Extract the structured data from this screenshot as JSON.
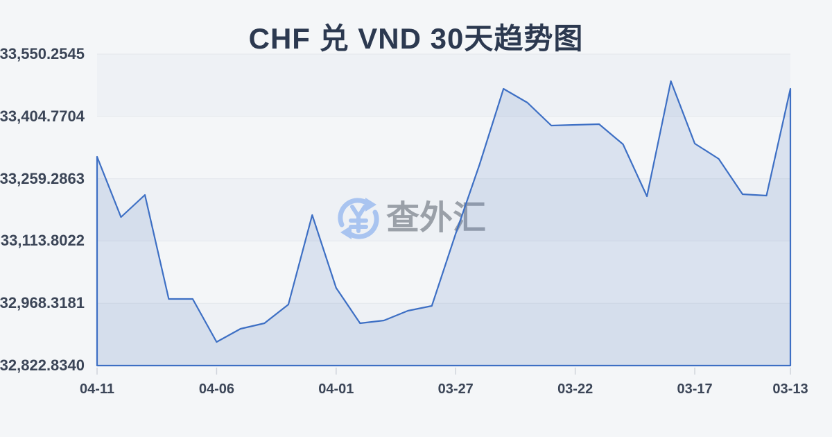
{
  "page": {
    "title": "CHF 兑 VND 30天趋势图"
  },
  "watermark": {
    "text": "查外汇",
    "icon": "yuan-refresh-icon"
  },
  "colors": {
    "background": "#f4f6f8",
    "line": "#3d6fc4",
    "area_fill": "rgba(90,125,195,0.16)",
    "split_area": "rgba(160,173,197,0.06)",
    "gridline": "#e4e7ec",
    "tick": "#cfd4db",
    "title_text": "#2c3950",
    "axis_text": "#3b4557",
    "watermark_text": "#9aa0a8",
    "watermark_icon": "#a9c4f0"
  },
  "chart_data": {
    "type": "area",
    "title": "CHF 兑 VND 30天趋势图",
    "xlabel": "",
    "ylabel": "",
    "legend": "none",
    "grid": "horizontal",
    "ylim": [
      32822.834,
      33550.2545
    ],
    "x": [
      "04-11",
      "04-10",
      "04-09",
      "04-08",
      "04-07",
      "04-06",
      "04-05",
      "04-04",
      "04-03",
      "04-02",
      "04-01",
      "03-31",
      "03-30",
      "03-29",
      "03-28",
      "03-27",
      "03-26",
      "03-25",
      "03-24",
      "03-23",
      "03-22",
      "03-21",
      "03-20",
      "03-19",
      "03-18",
      "03-17",
      "03-16",
      "03-15",
      "03-14",
      "03-13"
    ],
    "values": [
      33310.5,
      33169.5,
      33221.4,
      32978.4,
      32978.4,
      32877.9,
      32908.7,
      32921.7,
      32965.4,
      33174.4,
      33004.3,
      32921.7,
      32928.1,
      32950.8,
      32962.2,
      33130.7,
      33292.7,
      33469.3,
      33436.8,
      33383.4,
      33385.0,
      33386.6,
      33339.6,
      33218.1,
      33487.1,
      33341.3,
      33305.6,
      33223.0,
      33219.8,
      33469.3
    ],
    "x_tick_indices": [
      0,
      5,
      10,
      15,
      20,
      25,
      29
    ],
    "x_tick_labels": [
      "04-11",
      "04-06",
      "04-01",
      "03-27",
      "03-22",
      "03-17",
      "03-13"
    ],
    "y_tick_labels": [
      "33,550.2545",
      "33,404.7704",
      "33,259.2863",
      "33,113.8022",
      "32,968.3181",
      "32,822.8340"
    ]
  }
}
